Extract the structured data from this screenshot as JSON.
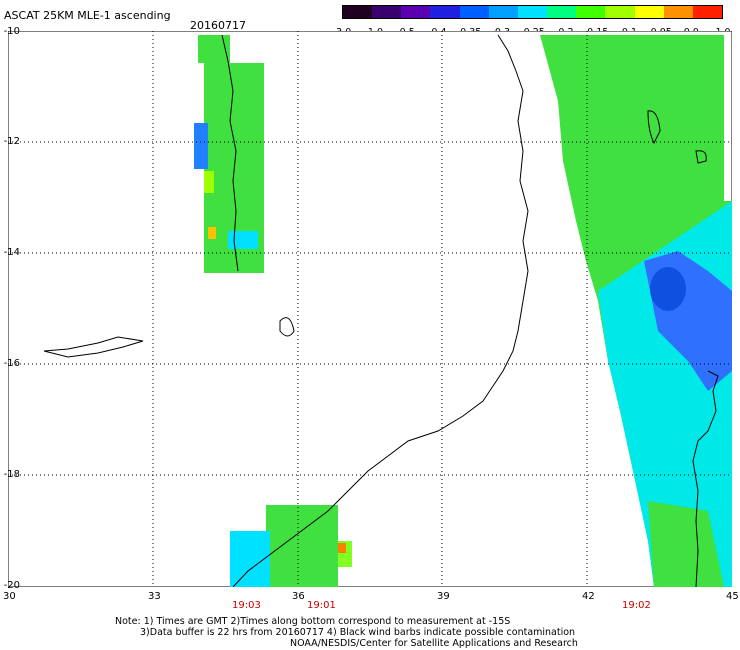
{
  "header": {
    "title": "ASCAT 25KM MLE-1 ascending",
    "date": "20160717"
  },
  "colorbar": {
    "labels": [
      "-3.0",
      "-1.0",
      "-0.5",
      "-0.4",
      "-0.35",
      "-0.3",
      "-0.25",
      "-0.2",
      "-0.15",
      "-0.1",
      "-0.05",
      "0.0",
      "1.0"
    ],
    "colors": [
      "#200020",
      "#3a0070",
      "#5a00b0",
      "#2020e0",
      "#0060ff",
      "#00a0ff",
      "#00e0ff",
      "#00ff80",
      "#40ff00",
      "#a0ff00",
      "#ffff00",
      "#ff9000",
      "#ff2000"
    ]
  },
  "map": {
    "lon_labels": [
      "30",
      "33",
      "36",
      "39",
      "42",
      "45"
    ],
    "lat_labels": [
      "-10",
      "-12",
      "-14",
      "-16",
      "-18",
      "-20"
    ],
    "time_labels": [
      "19:03",
      "19:01",
      "19:02"
    ]
  },
  "notes": {
    "line1": "Note: 1) Times are GMT 2)Times along bottom correspond to measurement at -15S",
    "line2": "3)Data buffer is 22 hrs from 20160717 4) Black wind barbs indicate possible contamination",
    "line3": "NOAA/NESDIS/Center for Satellite Applications and Research"
  }
}
